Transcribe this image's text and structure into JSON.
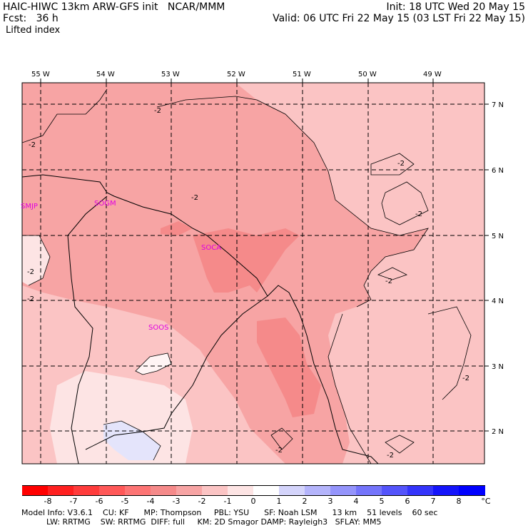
{
  "header": {
    "model_line": "HAIC-HIWC 13km ARW-GFS init   NCAR/MMM",
    "fcst_line": "Fcst:   36 h",
    "field_name": "Lifted index",
    "init_line": "Init: 18 UTC Wed 20 May 15",
    "valid_line": "Valid: 06 UTC Fri 22 May 15 (03 LST Fri 22 May 15)"
  },
  "map": {
    "lon_labels": [
      "55 W",
      "54 W",
      "53 W",
      "52 W",
      "51 W",
      "50 W",
      "49 W"
    ],
    "lat_labels": [
      "7 N",
      "6 N",
      "5 N",
      "4 N",
      "3 N",
      "2 N"
    ],
    "stations": [
      "SMJP",
      "SOGM",
      "SOCA",
      "SOOS"
    ],
    "contour_label": "-2",
    "colors": {
      "li_neg4": "#f58a8a",
      "li_neg3": "#f7a4a4",
      "li_neg2": "#fbc4c4",
      "li_neg1": "#fde4e4",
      "li_0": "#fff4f4",
      "li_pos1": "#e4e4fb"
    }
  },
  "color_scale": {
    "labels": [
      "-8",
      "-7",
      "-6",
      "-5",
      "-4",
      "-3",
      "-2",
      "-1",
      "0",
      "1",
      "2",
      "3",
      "4",
      "5",
      "6",
      "7",
      "8"
    ],
    "unit": "°C",
    "colors": [
      "#ff0000",
      "#ff2020",
      "#ff3c3c",
      "#ff5858",
      "#fd7474",
      "#f58a8a",
      "#f7a4a4",
      "#fbc4c4",
      "#fde4e4",
      "#ffffff",
      "#d4d4fb",
      "#b4b4fb",
      "#9494fb",
      "#7474fb",
      "#5454fb",
      "#3434fb",
      "#1414fb",
      "#0000ff"
    ]
  },
  "footer": {
    "line1": "Model Info: V3.6.1    CU: KF      MP: Thompson     PBL: YSU      SF: Noah LSM      13 km    51 levels    60 sec",
    "line2": "          LW: RRTMG    SW: RRTMG  DIFF: full     KM: 2D Smagor DAMP: Rayleigh3   SFLAY: MM5"
  }
}
